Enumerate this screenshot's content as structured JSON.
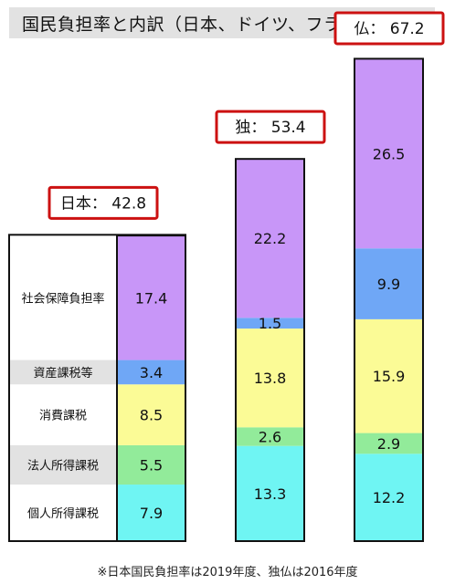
{
  "title": "国民負担率と内訳（日本、ドイツ、フランス）",
  "footnote": "※日本国民負担率は2019年度、独仏は2016年度",
  "chart_data": {
    "type": "bar",
    "stacked": true,
    "categories": [
      "日本",
      "独",
      "仏"
    ],
    "totals": [
      {
        "label": "日本： 42.8",
        "value": 42.8
      },
      {
        "label": "独： 53.4",
        "value": 53.4
      },
      {
        "label": "仏： 67.2",
        "value": 67.2
      }
    ],
    "series": [
      {
        "name": "個人所得課税",
        "color": "#6ff5f3",
        "values": [
          7.9,
          13.3,
          12.2
        ]
      },
      {
        "name": "法人所得課税",
        "color": "#92eb9a",
        "values": [
          5.5,
          2.6,
          2.9
        ]
      },
      {
        "name": "消費課税",
        "color": "#fbfb96",
        "values": [
          8.5,
          13.8,
          15.9
        ]
      },
      {
        "name": "資産課税等",
        "color": "#6fa7f6",
        "values": [
          3.4,
          1.5,
          9.9
        ]
      },
      {
        "name": "社会保障負担率",
        "color": "#c896f8",
        "values": [
          17.4,
          22.2,
          26.5
        ]
      }
    ],
    "label_box_color": "#e2e2e2",
    "total_box_border": "#cc1111"
  }
}
